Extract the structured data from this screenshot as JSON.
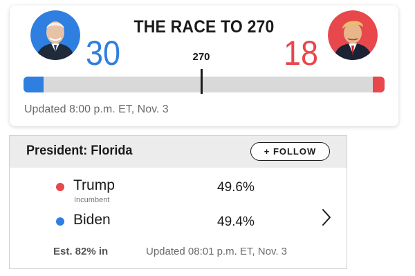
{
  "race": {
    "title": "THE RACE TO 270",
    "threshold_label": "270",
    "threshold_value": 270,
    "total_votes": 538,
    "updated": "Updated 8:00 p.m. ET, Nov. 3",
    "left": {
      "electoral_votes": "30",
      "electoral_value": 30,
      "color": "#2e7fe0",
      "avatar_icon": "candidate-portrait-icon",
      "avatar_bg": "#2e7fe0"
    },
    "right": {
      "electoral_votes": "18",
      "electoral_value": 18,
      "color": "#e8474c",
      "avatar_icon": "candidate-portrait-icon",
      "avatar_bg": "#e8474c"
    }
  },
  "state": {
    "title": "President: Florida",
    "follow_label": "+ FOLLOW",
    "candidates": [
      {
        "name": "Trump",
        "subtitle": "Incumbent",
        "percent": "49.6%",
        "color": "#e8474c"
      },
      {
        "name": "Biden",
        "subtitle": "",
        "percent": "49.4%",
        "color": "#2e7fe0"
      }
    ],
    "estimate": "Est. 82% in",
    "updated": "Updated 08:01 p.m. ET, Nov. 3",
    "chevron_icon": "chevron-right-icon"
  }
}
